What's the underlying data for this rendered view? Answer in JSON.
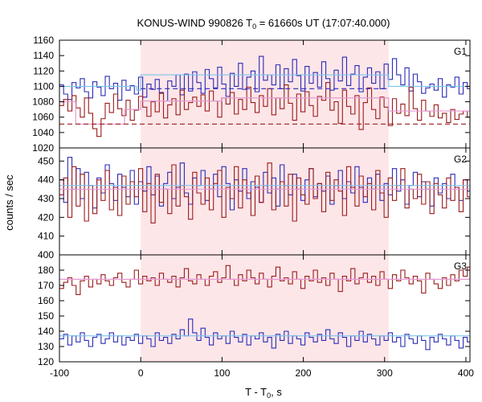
{
  "chart_data": {
    "type": "line",
    "title": "KONUS-WIND 990826 T",
    "title_sub": "0",
    "title_rest": " = 61660s UT (17:07:40.000)",
    "xlabel": "T - T",
    "xlabel_sub": "0",
    "xlabel_rest": ", s",
    "ylabel": "counts / sec",
    "xlim": [
      -100,
      405
    ],
    "xticks": [
      "-100",
      "0",
      "100",
      "200",
      "300",
      "400"
    ],
    "xtick_values": [
      -100,
      0,
      100,
      200,
      300,
      400
    ],
    "highlight": {
      "x_start": 0,
      "x_end": 305,
      "color": "#fde6e8"
    },
    "colors": {
      "primary": "#9b1c1c",
      "secondary": "#2b2bb8",
      "fit_primary": "#e59ad4",
      "fit_secondary": "#7fc4ec"
    },
    "panels": [
      {
        "name": "G1",
        "ylim": [
          1020,
          1160
        ],
        "yticks": [
          "1020",
          "1040",
          "1060",
          "1080",
          "1100",
          "1120",
          "1140",
          "1160"
        ],
        "ytick_values": [
          1020,
          1040,
          1060,
          1080,
          1100,
          1120,
          1140,
          1160
        ],
        "bin_start": -100,
        "bin_width": 5.12,
        "series": [
          {
            "color": "#2b2bb8",
            "values": [
              1102,
              1090,
              1083,
              1105,
              1098,
              1110,
              1093,
              1085,
              1106,
              1099,
              1088,
              1113,
              1097,
              1104,
              1082,
              1108,
              1095,
              1101,
              1090,
              1112,
              1086,
              1103,
              1096,
              1109,
              1092,
              1081,
              1107,
              1100,
              1115,
              1089,
              1116,
              1094,
              1119,
              1105,
              1091,
              1122,
              1110,
              1098,
              1125,
              1103,
              1087,
              1117,
              1100,
              1130,
              1096,
              1112,
              1120,
              1093,
              1139,
              1108,
              1115,
              1102,
              1128,
              1097,
              1123,
              1106,
              1135,
              1114,
              1094,
              1126,
              1104,
              1118,
              1099,
              1132,
              1110,
              1095,
              1121,
              1107,
              1138,
              1101,
              1116,
              1127,
              1093,
              1112,
              1124,
              1104,
              1119,
              1097,
              1129,
              1109,
              1136,
              1115,
              1102,
              1124,
              1094,
              1116,
              1106,
              1091,
              1098,
              1103,
              1095,
              1110,
              1086,
              1102,
              1099,
              1112,
              1090,
              1105,
              1097,
              1115
            ]
          },
          {
            "color": "#9b1c1c",
            "values": [
              1075,
              1083,
              1068,
              1088,
              1072,
              1060,
              1085,
              1065,
              1045,
              1035,
              1058,
              1078,
              1066,
              1090,
              1071,
              1062,
              1082,
              1056,
              1069,
              1087,
              1073,
              1061,
              1080,
              1067,
              1091,
              1059,
              1076,
              1084,
              1063,
              1095,
              1070,
              1079,
              1086,
              1074,
              1089,
              1068,
              1094,
              1081,
              1060,
              1085,
              1077,
              1092,
              1064,
              1083,
              1070,
              1099,
              1079,
              1066,
              1088,
              1074,
              1097,
              1063,
              1085,
              1071,
              1102,
              1078,
              1056,
              1090,
              1067,
              1093,
              1075,
              1061,
              1087,
              1082,
              1105,
              1069,
              1080,
              1052,
              1095,
              1074,
              1064,
              1088,
              1044,
              1079,
              1098,
              1070,
              1058,
              1086,
              1073,
              1049,
              1084,
              1065,
              1077,
              1062,
              1099,
              1071,
              1056,
              1082,
              1068,
              1061,
              1076,
              1059,
              1065,
              1053,
              1070,
              1057,
              1064,
              1068,
              1060,
              1062
            ]
          }
        ],
        "fits": [
          {
            "color": "#7fc4ec",
            "dash": false,
            "segments": [
              [
                -100,
                -5,
                1100
              ],
              [
                -5,
                0,
                1095
              ],
              [
                0,
                305,
                1115
              ],
              [
                305,
                405,
                1100
              ]
            ]
          },
          {
            "color": "#2b2bb8",
            "dash": true,
            "segments": [
              [
                0,
                305,
                1097
              ]
            ]
          },
          {
            "color": "#e59ad4",
            "dash": false,
            "segments": [
              [
                -100,
                -80,
                1080
              ],
              [
                -80,
                -20,
                1051
              ],
              [
                -20,
                0,
                1070
              ],
              [
                0,
                100,
                1081
              ],
              [
                100,
                305,
                1085
              ],
              [
                305,
                405,
                1068
              ]
            ]
          },
          {
            "color": "#9b1c1c",
            "dash": true,
            "segments": [
              [
                -100,
                405,
                1051
              ]
            ]
          }
        ]
      },
      {
        "name": "G2",
        "ylim": [
          400,
          457
        ],
        "yticks": [
          "400",
          "410",
          "420",
          "430",
          "440",
          "450"
        ],
        "ytick_values": [
          400,
          410,
          420,
          430,
          440,
          450
        ],
        "bin_start": -100,
        "bin_width": 5.12,
        "series": [
          {
            "color": "#2b2bb8",
            "values": [
              440,
              428,
              452,
              435,
              446,
              430,
              444,
              437,
              425,
              441,
              433,
              448,
              438,
              429,
              443,
              436,
              431,
              445,
              427,
              439,
              434,
              447,
              432,
              442,
              426,
              438,
              444,
              430,
              436,
              449,
              433,
              427,
              441,
              437,
              445,
              429,
              435,
              443,
              431,
              447,
              438,
              424,
              440,
              434,
              446,
              430,
              439,
              436,
              428,
              444,
              433,
              441,
              426,
              448,
              437,
              432,
              443,
              435,
              429,
              440,
              446,
              431,
              438,
              434,
              442,
              427,
              437,
              445,
              430,
              439,
              433,
              447,
              436,
              428,
              441,
              435,
              443,
              429,
              438,
              432,
              446,
              434,
              440,
              427,
              437,
              444,
              431,
              439,
              435,
              426,
              441,
              433,
              438,
              430,
              443,
              436,
              429,
              440,
              434,
              437
            ]
          },
          {
            "color": "#9b1c1c",
            "values": [
              432,
              441,
              420,
              447,
              426,
              443,
              418,
              437,
              422,
              440,
              429,
              445,
              424,
              436,
              421,
              442,
              427,
              439,
              431,
              446,
              423,
              438,
              417,
              443,
              428,
              435,
              422,
              448,
              426,
              437,
              431,
              419,
              444,
              433,
              427,
              441,
              424,
              438,
              445,
              420,
              436,
              430,
              447,
              425,
              440,
              433,
              421,
              442,
              428,
              437,
              449,
              424,
              435,
              439,
              426,
              443,
              418,
              441,
              432,
              427,
              446,
              430,
              438,
              423,
              444,
              429,
              440,
              434,
              421,
              447,
              436,
              426,
              442,
              431,
              438,
              424,
              445,
              433,
              420,
              441,
              429,
              437,
              446,
              425,
              435,
              430,
              443,
              427,
              439,
              422,
              438,
              432,
              425,
              441,
              429,
              436,
              423,
              440,
              431,
              434
            ]
          }
        ],
        "fits": [
          {
            "color": "#7fc4ec",
            "dash": false,
            "segments": [
              [
                -100,
                405,
                437
              ]
            ]
          },
          {
            "color": "#e59ad4",
            "dash": false,
            "segments": [
              [
                -100,
                405,
                435
              ]
            ]
          }
        ]
      },
      {
        "name": "G3",
        "ylim": [
          120,
          190
        ],
        "yticks": [
          "120",
          "130",
          "140",
          "150",
          "160",
          "170",
          "180"
        ],
        "ytick_values": [
          120,
          130,
          140,
          150,
          160,
          170,
          180
        ],
        "bin_start": -100,
        "bin_width": 5.12,
        "series": [
          {
            "color": "#9b1c1c",
            "values": [
              168,
              172,
              175,
              170,
              164,
              173,
              176,
              169,
              174,
              171,
              177,
              173,
              170,
              175,
              178,
              172,
              169,
              174,
              180,
              171,
              176,
              173,
              175,
              170,
              178,
              174,
              172,
              176,
              169,
              175,
              181,
              173,
              171,
              177,
              174,
              170,
              176,
              179,
              172,
              175,
              183,
              174,
              170,
              177,
              173,
              180,
              175,
              171,
              178,
              174,
              169,
              176,
              182,
              173,
              175,
              171,
              179,
              174,
              168,
              176,
              173,
              180,
              172,
              175,
              170,
              178,
              174,
              166,
              176,
              173,
              181,
              171,
              175,
              178,
              172,
              176,
              170,
              179,
              174,
              168,
              177,
              173,
              180,
              175,
              171,
              176,
              173,
              165,
              178,
              174,
              171,
              168,
              175,
              170,
              177,
              173,
              180,
              176,
              182,
              178
            ]
          },
          {
            "color": "#2b2bb8",
            "values": [
              135,
              138,
              131,
              137,
              133,
              139,
              134,
              130,
              136,
              138,
              132,
              135,
              139,
              133,
              137,
              131,
              136,
              134,
              138,
              132,
              137,
              135,
              130,
              139,
              134,
              136,
              132,
              138,
              135,
              141,
              137,
              148,
              139,
              134,
              142,
              136,
              131,
              139,
              135,
              137,
              132,
              140,
              136,
              133,
              138,
              131,
              137,
              135,
              139,
              133,
              136,
              129,
              138,
              134,
              140,
              132,
              137,
              135,
              131,
              139,
              136,
              133,
              138,
              134,
              141,
              135,
              132,
              139,
              136,
              130,
              137,
              134,
              140,
              133,
              138,
              135,
              131,
              137,
              134,
              139,
              133,
              136,
              130,
              138,
              135,
              132,
              137,
              134,
              128,
              136,
              133,
              138,
              135,
              131,
              137,
              134,
              129,
              136,
              133,
              135
            ]
          }
        ],
        "fits": [
          {
            "color": "#e59ad4",
            "dash": false,
            "segments": [
              [
                -100,
                405,
                174
              ]
            ]
          },
          {
            "color": "#7fc4ec",
            "dash": false,
            "segments": [
              [
                -100,
                405,
                137
              ]
            ]
          }
        ]
      }
    ]
  }
}
